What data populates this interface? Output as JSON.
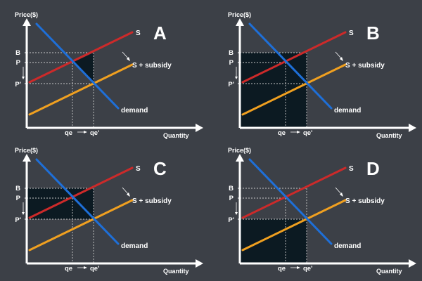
{
  "colors": {
    "background": "#3c4047",
    "axis": "#ffffff",
    "supply": "#cc2a2a",
    "supply_subsidy": "#f0a020",
    "demand": "#1e6fd8",
    "shade": "#0c1a22",
    "guide": "#c8c8c8"
  },
  "labels": {
    "y_axis": "Price($)",
    "x_axis": "Quantity",
    "supply": "S",
    "supply_subsidy": "S + subsidy",
    "demand": "demand",
    "price_b": "B",
    "price_p": "P",
    "price_p_prime": "P'",
    "qty_qe": "qe",
    "qty_qe_prime": "qe'"
  },
  "panels": [
    {
      "letter": "A",
      "shaded_region": "triangle between B, P and qe'"
    },
    {
      "letter": "B",
      "shaded_region": "rectangle 0 to B by 0 to qe'"
    },
    {
      "letter": "C",
      "shaded_region": "rectangle P' to B by 0 to qe'"
    },
    {
      "letter": "D",
      "shaded_region": "rectangle 0 to P' by 0 to qe'"
    }
  ]
}
